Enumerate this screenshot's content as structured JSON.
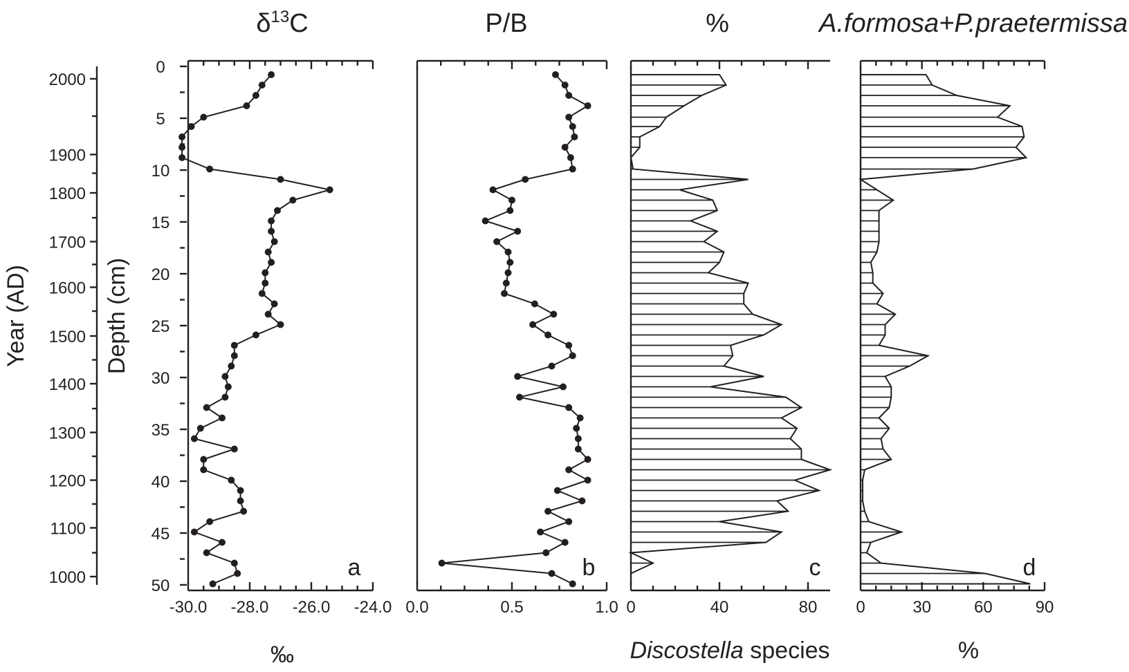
{
  "chart_data": [
    {
      "id": "a",
      "type": "line",
      "title": "δ13C",
      "title_main": "δ",
      "title_sup": "13",
      "title_end": "C",
      "xlabel": "‰",
      "panel_letter": "a",
      "xlim": [
        -30.0,
        -24.0
      ],
      "xticks": [
        -30.0,
        -28.0,
        -26.0,
        -24.0
      ],
      "xtick_labels": [
        "-30.0",
        "-28.0",
        "-26.0",
        "-24.0"
      ],
      "markers": true,
      "depth": [
        0.8,
        1.8,
        2.8,
        3.8,
        4.9,
        5.8,
        6.8,
        7.8,
        8.8,
        9.9,
        10.9,
        11.9,
        12.9,
        13.9,
        14.9,
        15.9,
        16.9,
        17.9,
        18.9,
        19.9,
        20.9,
        21.9,
        22.9,
        23.9,
        24.9,
        25.9,
        26.9,
        27.9,
        28.9,
        29.9,
        30.9,
        31.9,
        32.9,
        33.9,
        34.9,
        35.9,
        36.9,
        37.9,
        38.9,
        39.9,
        40.9,
        41.9,
        42.9,
        43.9,
        44.9,
        45.9,
        46.9,
        47.9,
        48.9,
        49.9
      ],
      "values": [
        -27.3,
        -27.6,
        -27.8,
        -28.1,
        -29.5,
        -29.9,
        -30.2,
        -30.2,
        -30.2,
        -29.3,
        -27.0,
        -25.4,
        -26.6,
        -27.1,
        -27.3,
        -27.3,
        -27.2,
        -27.4,
        -27.3,
        -27.5,
        -27.5,
        -27.6,
        -27.2,
        -27.4,
        -27.0,
        -27.8,
        -28.5,
        -28.5,
        -28.6,
        -28.8,
        -28.7,
        -28.8,
        -29.4,
        -28.9,
        -29.6,
        -29.8,
        -28.5,
        -29.5,
        -29.5,
        -28.6,
        -28.3,
        -28.3,
        -28.2,
        -29.3,
        -29.8,
        -28.9,
        -29.4,
        -28.5,
        -28.4,
        -29.2
      ]
    },
    {
      "id": "b",
      "type": "line",
      "title": "P/B",
      "xlabel": "",
      "panel_letter": "b",
      "xlim": [
        0.0,
        1.0
      ],
      "xticks": [
        0.0,
        0.5,
        1.0
      ],
      "xtick_labels": [
        "0.0",
        "0.5",
        "1.0"
      ],
      "markers": true,
      "depth": [
        0.8,
        1.8,
        2.8,
        3.8,
        4.9,
        5.8,
        6.8,
        7.8,
        8.8,
        9.9,
        10.9,
        11.9,
        12.9,
        13.9,
        14.9,
        15.9,
        16.9,
        17.9,
        18.9,
        19.9,
        20.9,
        21.9,
        22.9,
        23.9,
        24.9,
        25.9,
        26.9,
        27.9,
        28.9,
        29.9,
        30.9,
        31.9,
        32.9,
        33.9,
        34.9,
        35.9,
        36.9,
        37.9,
        38.9,
        39.9,
        40.9,
        41.9,
        42.9,
        43.9,
        44.9,
        45.9,
        46.9,
        47.9,
        48.9,
        49.9
      ],
      "values": [
        0.73,
        0.78,
        0.8,
        0.9,
        0.8,
        0.82,
        0.83,
        0.78,
        0.81,
        0.82,
        0.57,
        0.4,
        0.5,
        0.49,
        0.36,
        0.53,
        0.42,
        0.48,
        0.49,
        0.48,
        0.47,
        0.46,
        0.62,
        0.72,
        0.61,
        0.69,
        0.8,
        0.82,
        0.71,
        0.53,
        0.77,
        0.54,
        0.8,
        0.86,
        0.84,
        0.85,
        0.85,
        0.9,
        0.8,
        0.9,
        0.74,
        0.87,
        0.69,
        0.8,
        0.65,
        0.78,
        0.68,
        0.13,
        0.71,
        0.82
      ]
    },
    {
      "id": "c",
      "type": "bar",
      "title": "%",
      "xlabel": "Discostella species",
      "xlabel_italic": "Discostella",
      "xlabel_rest": " species",
      "panel_letter": "c",
      "xlim": [
        0,
        90
      ],
      "xticks": [
        0,
        40,
        80
      ],
      "xtick_labels": [
        "0",
        "40",
        "80"
      ],
      "depth": [
        0.8,
        1.8,
        2.8,
        3.8,
        4.9,
        5.8,
        6.8,
        7.8,
        8.8,
        9.9,
        10.9,
        11.9,
        12.9,
        13.9,
        14.9,
        15.9,
        16.9,
        17.9,
        18.9,
        19.9,
        20.9,
        21.9,
        22.9,
        23.9,
        24.9,
        25.9,
        26.9,
        27.9,
        28.9,
        29.9,
        30.9,
        31.9,
        32.9,
        33.9,
        34.9,
        35.9,
        36.9,
        37.9,
        38.9,
        39.9,
        40.9,
        41.9,
        42.9,
        43.9,
        44.9,
        45.9,
        46.9,
        47.9,
        48.9,
        49.9
      ],
      "values": [
        40,
        43,
        32,
        24,
        16,
        13,
        4,
        4,
        0,
        1,
        53,
        22,
        37,
        39,
        27,
        39,
        33,
        42,
        40,
        35,
        53,
        51,
        51,
        55,
        68,
        60,
        45,
        46,
        42,
        60,
        36,
        70,
        77,
        68,
        75,
        72,
        77,
        77,
        90,
        74,
        85,
        66,
        71,
        40,
        68,
        61,
        0,
        10,
        0,
        0
      ]
    },
    {
      "id": "d",
      "type": "bar",
      "title": "A.formosa+P.praetermissa",
      "xlabel": "%",
      "panel_letter": "d",
      "xlim": [
        0,
        90
      ],
      "xticks": [
        0,
        30,
        60,
        90
      ],
      "xtick_labels": [
        "0",
        "30",
        "60",
        "90"
      ],
      "depth": [
        0.8,
        1.8,
        2.8,
        3.8,
        4.9,
        5.8,
        6.8,
        7.8,
        8.8,
        9.9,
        10.9,
        11.9,
        12.9,
        13.9,
        14.9,
        15.9,
        16.9,
        17.9,
        18.9,
        19.9,
        20.9,
        21.9,
        22.9,
        23.9,
        24.9,
        25.9,
        26.9,
        27.9,
        28.9,
        29.9,
        30.9,
        31.9,
        32.9,
        33.9,
        34.9,
        35.9,
        36.9,
        37.9,
        38.9,
        39.9,
        40.9,
        41.9,
        42.9,
        43.9,
        44.9,
        45.9,
        46.9,
        47.9,
        48.9,
        49.9
      ],
      "values": [
        32,
        35,
        47,
        73,
        67,
        79,
        80,
        76,
        81,
        55,
        0,
        8,
        16,
        9,
        9,
        9,
        9,
        8,
        5,
        6,
        6,
        11,
        8,
        17,
        12,
        12,
        9,
        33,
        24,
        12,
        15,
        15,
        14,
        9,
        14,
        10,
        11,
        15,
        2,
        1,
        1,
        1,
        2,
        4,
        20,
        5,
        3,
        10,
        61,
        83
      ]
    }
  ],
  "depth_axis": {
    "label": "Depth (cm)",
    "ylim": [
      0,
      50
    ],
    "ticks": [
      0,
      5,
      10,
      15,
      20,
      25,
      30,
      35,
      40,
      45,
      50
    ],
    "tick_labels": [
      "0",
      "5",
      "10",
      "15",
      "20",
      "25",
      "30",
      "35",
      "40",
      "45",
      "50"
    ]
  },
  "year_axis": {
    "label": "Year (AD)",
    "tick_labels": [
      "2000",
      "1900",
      "1800",
      "1700",
      "1600",
      "1500",
      "1400",
      "1300",
      "1200",
      "1100",
      "1000"
    ],
    "tick_depths": [
      1.2,
      8.5,
      12.2,
      16.9,
      21.3,
      26.0,
      30.6,
      35.3,
      39.9,
      44.5,
      49.2
    ],
    "minor_tick_depths": [
      4.8,
      10.3,
      14.6,
      19.1,
      23.6,
      28.3,
      33.0,
      37.6,
      42.2,
      46.9
    ]
  }
}
